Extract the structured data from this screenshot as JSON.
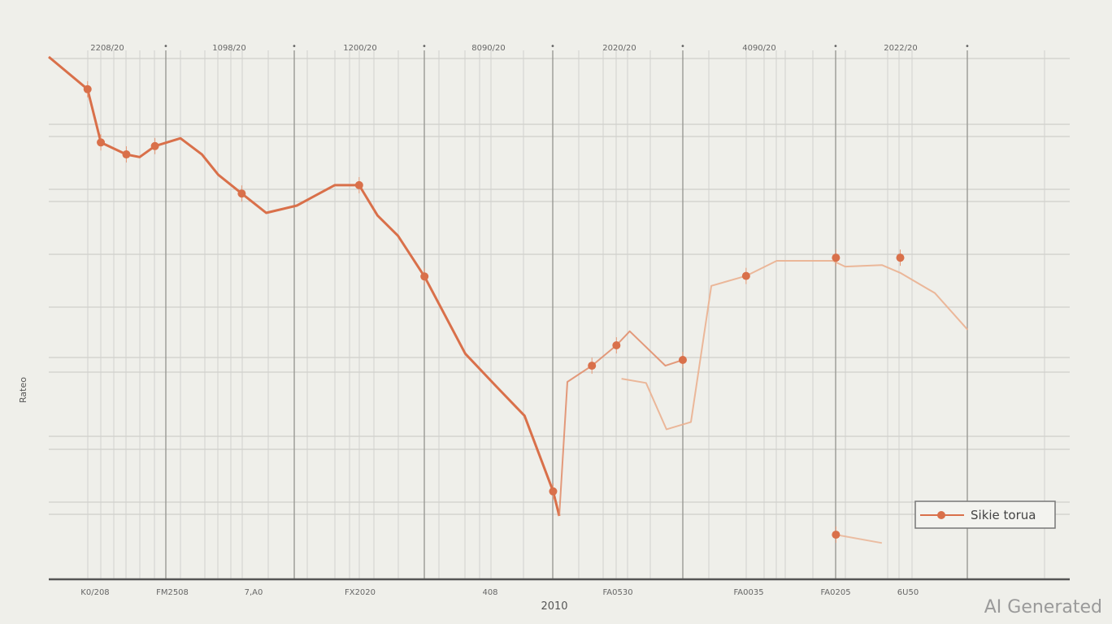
{
  "chart_data": {
    "type": "line",
    "title": "",
    "xlabel": "2010",
    "ylabel": "Rateo",
    "xlim": [
      0,
      100
    ],
    "ylim": [
      0,
      100
    ],
    "grid": true,
    "legend": {
      "position": "bottom-right",
      "entries": [
        "Sikie torua"
      ]
    },
    "top_tick_labels": [
      "2208/20",
      "1098/20",
      "1200/20",
      "8090/20",
      "2020/20",
      "4090/20",
      "2022/20"
    ],
    "bottom_tick_labels": [
      "K0/208",
      "FM2508",
      "7,A0",
      "FX2020",
      "408",
      "FA0530",
      "FA0035",
      "FA0205",
      "6U50"
    ],
    "series": [
      {
        "name": "Sikie torua",
        "color": "#d9704a",
        "opacity": 1,
        "points": [
          [
            0,
            100
          ],
          [
            3.8,
            93.8
          ],
          [
            5.1,
            83.6
          ],
          [
            7.6,
            81.3
          ],
          [
            8.9,
            80.8
          ],
          [
            10.4,
            82.9
          ],
          [
            12.9,
            84.4
          ],
          [
            15.0,
            81.3
          ],
          [
            16.6,
            77.4
          ],
          [
            18.9,
            73.8
          ],
          [
            21.3,
            70.1
          ],
          [
            24.3,
            71.5
          ],
          [
            28.0,
            75.4
          ],
          [
            30.4,
            75.4
          ],
          [
            32.2,
            69.6
          ],
          [
            34.2,
            65.7
          ],
          [
            36.8,
            57.9
          ],
          [
            40.8,
            43.1
          ],
          [
            43.8,
            36.9
          ],
          [
            46.6,
            31.2
          ],
          [
            49.4,
            16.7
          ],
          [
            50.0,
            12.0
          ]
        ]
      },
      {
        "color": "#e08a66",
        "opacity": 0.85,
        "points": [
          [
            50.0,
            12.0
          ],
          [
            50.8,
            37.7
          ],
          [
            53.2,
            40.8
          ],
          [
            55.6,
            44.7
          ],
          [
            56.9,
            47.4
          ],
          [
            60.4,
            40.8
          ],
          [
            62.1,
            41.9
          ]
        ]
      },
      {
        "color": "#eab090",
        "opacity": 0.9,
        "points": [
          [
            56.1,
            38.3
          ],
          [
            58.5,
            37.5
          ],
          [
            60.5,
            28.6
          ],
          [
            62.9,
            30.0
          ],
          [
            64.9,
            56.1
          ],
          [
            68.3,
            58.0
          ],
          [
            71.3,
            60.9
          ],
          [
            76.8,
            60.9
          ],
          [
            78.0,
            59.8
          ],
          [
            81.6,
            60.1
          ],
          [
            83.4,
            58.6
          ],
          [
            86.8,
            54.7
          ],
          [
            90.0,
            47.7
          ]
        ]
      },
      {
        "color": "#eab090",
        "opacity": 0.8,
        "points": [
          [
            77.1,
            8.4
          ],
          [
            81.6,
            6.8
          ]
        ]
      }
    ],
    "markers": [
      [
        3.8,
        93.8
      ],
      [
        5.1,
        83.6
      ],
      [
        7.6,
        81.3
      ],
      [
        10.4,
        82.9
      ],
      [
        18.9,
        73.8
      ],
      [
        30.4,
        75.4
      ],
      [
        36.8,
        57.9
      ],
      [
        49.4,
        16.7
      ],
      [
        53.2,
        40.8
      ],
      [
        55.6,
        44.7
      ],
      [
        62.1,
        41.9
      ],
      [
        68.3,
        58.0
      ],
      [
        77.1,
        61.5
      ],
      [
        83.4,
        61.5
      ],
      [
        77.1,
        8.4
      ]
    ]
  }
}
